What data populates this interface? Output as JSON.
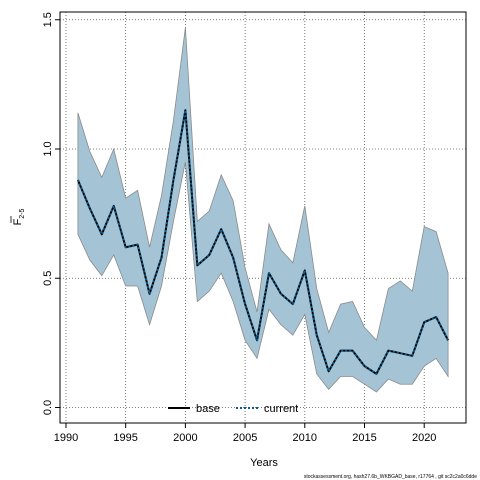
{
  "chart_data": {
    "type": "line",
    "title": "",
    "xlabel": "Years",
    "ylabel_main": "F",
    "ylabel_sub": "2-5",
    "xlim": [
      1989.5,
      2023.5
    ],
    "ylim": [
      -0.06,
      1.53
    ],
    "x_ticks": [
      1990,
      1995,
      2000,
      2005,
      2010,
      2015,
      2020
    ],
    "y_ticks": [
      0.0,
      0.5,
      1.0,
      1.5
    ],
    "y_tick_labels": [
      "0.0",
      "0.5",
      "1.0",
      "1.5"
    ],
    "grid": true,
    "legend_position": "bottom-center",
    "series": [
      {
        "name": "base",
        "style": "solid",
        "color": "#000000",
        "x": [
          1991,
          1992,
          1993,
          1994,
          1995,
          1996,
          1997,
          1998,
          1999,
          2000,
          2001,
          2002,
          2003,
          2004,
          2005,
          2006,
          2007,
          2008,
          2009,
          2010,
          2011,
          2012,
          2013,
          2014,
          2015,
          2016,
          2017,
          2018,
          2019,
          2020,
          2021,
          2022
        ],
        "values": [
          0.88,
          0.77,
          0.67,
          0.78,
          0.62,
          0.63,
          0.44,
          0.58,
          0.88,
          1.15,
          0.55,
          0.59,
          0.69,
          0.58,
          0.4,
          0.26,
          0.52,
          0.44,
          0.4,
          0.53,
          0.28,
          0.14,
          0.22,
          0.22,
          0.16,
          0.13,
          0.22,
          0.21,
          0.2,
          0.33,
          0.35,
          0.26
        ]
      },
      {
        "name": "current",
        "style": "dotted",
        "color": "#0a5a8c",
        "x": [
          1991,
          1992,
          1993,
          1994,
          1995,
          1996,
          1997,
          1998,
          1999,
          2000,
          2001,
          2002,
          2003,
          2004,
          2005,
          2006,
          2007,
          2008,
          2009,
          2010,
          2011,
          2012,
          2013,
          2014,
          2015,
          2016,
          2017,
          2018,
          2019,
          2020,
          2021,
          2022
        ],
        "values": [
          0.88,
          0.77,
          0.67,
          0.78,
          0.62,
          0.63,
          0.44,
          0.58,
          0.88,
          1.15,
          0.55,
          0.59,
          0.69,
          0.58,
          0.4,
          0.26,
          0.52,
          0.44,
          0.4,
          0.53,
          0.28,
          0.14,
          0.22,
          0.22,
          0.16,
          0.13,
          0.22,
          0.21,
          0.2,
          0.33,
          0.35,
          0.26
        ]
      }
    ],
    "confidence_band": {
      "color": "#a4c4d6",
      "edge_color": "#8a8a8a",
      "x": [
        1991,
        1992,
        1993,
        1994,
        1995,
        1996,
        1997,
        1998,
        1999,
        2000,
        2001,
        2002,
        2003,
        2004,
        2005,
        2006,
        2007,
        2008,
        2009,
        2010,
        2011,
        2012,
        2013,
        2014,
        2015,
        2016,
        2017,
        2018,
        2019,
        2020,
        2021,
        2022
      ],
      "upper": [
        1.14,
        0.99,
        0.89,
        1.0,
        0.81,
        0.84,
        0.62,
        0.82,
        1.11,
        1.47,
        0.72,
        0.76,
        0.9,
        0.8,
        0.54,
        0.37,
        0.71,
        0.61,
        0.56,
        0.78,
        0.46,
        0.29,
        0.4,
        0.41,
        0.31,
        0.26,
        0.46,
        0.49,
        0.45,
        0.7,
        0.68,
        0.52
      ],
      "lower": [
        0.67,
        0.57,
        0.51,
        0.59,
        0.47,
        0.47,
        0.32,
        0.47,
        0.72,
        0.95,
        0.41,
        0.45,
        0.52,
        0.41,
        0.26,
        0.19,
        0.38,
        0.32,
        0.28,
        0.36,
        0.13,
        0.07,
        0.12,
        0.12,
        0.09,
        0.06,
        0.11,
        0.09,
        0.09,
        0.16,
        0.19,
        0.12
      ]
    }
  },
  "footer_text": "stockassessment.org, hash27.6b_WKBGAD_base, r17764 , git sc2c2a0c6dde"
}
